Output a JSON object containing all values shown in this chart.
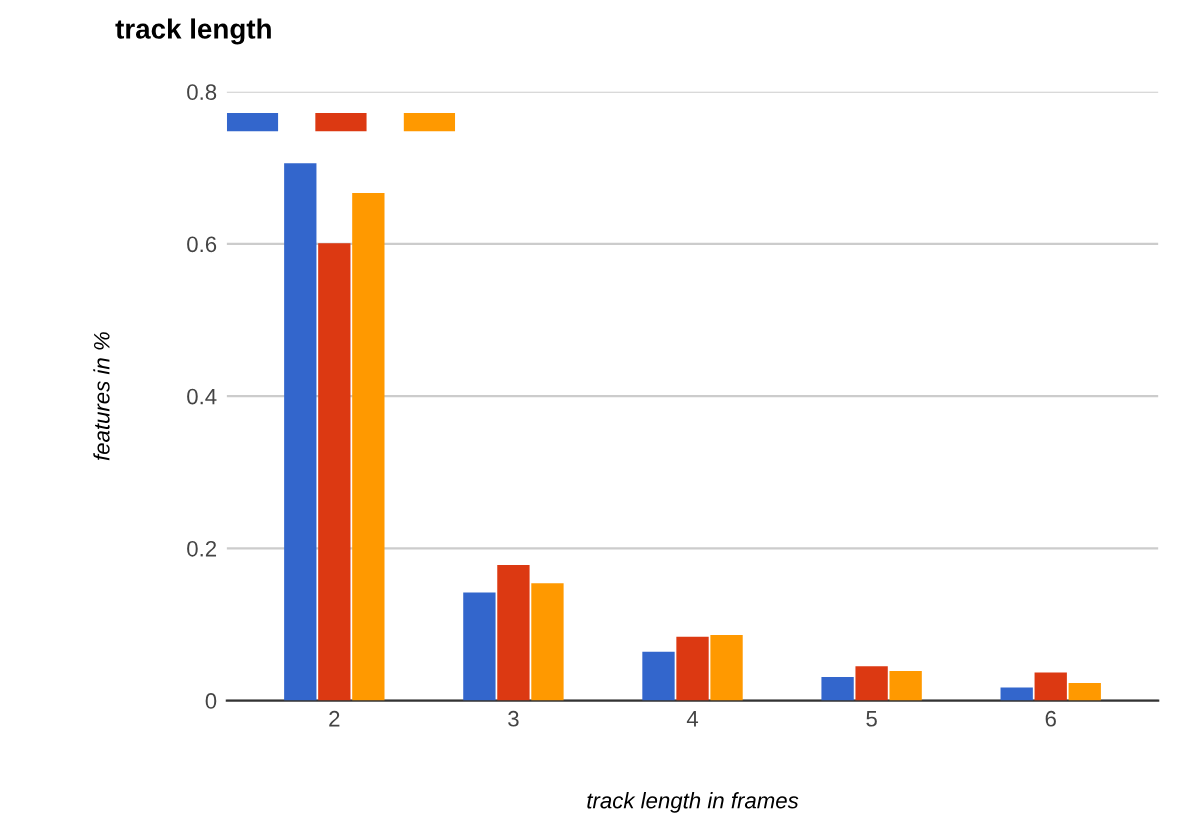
{
  "chart_data": {
    "type": "bar",
    "title": "track length",
    "xlabel": "track length in frames",
    "ylabel": "features in %",
    "categories": [
      "2",
      "3",
      "4",
      "5",
      "6"
    ],
    "series": [
      {
        "color": "#3366cc",
        "values": [
          0.706,
          0.142,
          0.064,
          0.031,
          0.017
        ]
      },
      {
        "color": "#dc3912",
        "values": [
          0.601,
          0.178,
          0.084,
          0.045,
          0.037
        ]
      },
      {
        "color": "#ff9900",
        "values": [
          0.667,
          0.154,
          0.086,
          0.039,
          0.023
        ]
      }
    ],
    "ylim": [
      0,
      0.8
    ],
    "yticks": [
      0,
      0.2,
      0.4,
      0.6,
      0.8
    ],
    "grid": "y"
  }
}
